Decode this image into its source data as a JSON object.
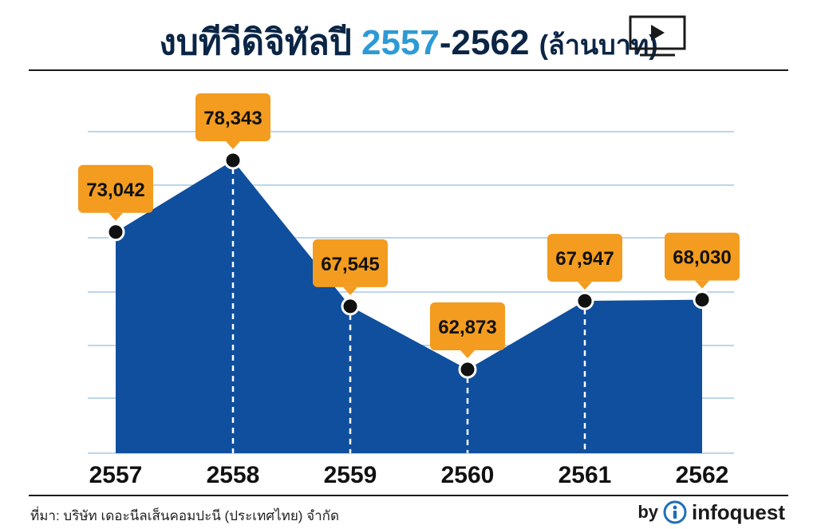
{
  "header": {
    "title_main": "งบทีวีดิจิทัลปี ",
    "title_year_start": "2557",
    "title_year_end": "-2562",
    "title_unit": "(ล้านบาท)",
    "icon": "tv-play-icon"
  },
  "chart_data": {
    "type": "area",
    "title": "งบทีวีดิจิทัลปี 2557-2562 (ล้านบาท)",
    "xlabel": "",
    "ylabel": "",
    "categories": [
      "2557",
      "2558",
      "2559",
      "2560",
      "2561",
      "2562"
    ],
    "values": [
      73042,
      78343,
      67545,
      62873,
      67947,
      68030
    ],
    "value_labels": [
      "73,042",
      "78,343",
      "67,545",
      "62,873",
      "67,947",
      "68,030"
    ],
    "unit": "ล้านบาท",
    "grid": true,
    "colors": {
      "area": "#0f4f9e",
      "label_box": "#f39c1f",
      "marker": "#111111",
      "grid": "#bcd6ea"
    }
  },
  "footer": {
    "source": "ที่มา: บริษัท เดอะนีลเส็นคอมปะนี (ประเทศไทย) จำกัด",
    "brand_by": "by",
    "brand_name": "infoquest",
    "brand_icon": "info-circle-icon"
  }
}
